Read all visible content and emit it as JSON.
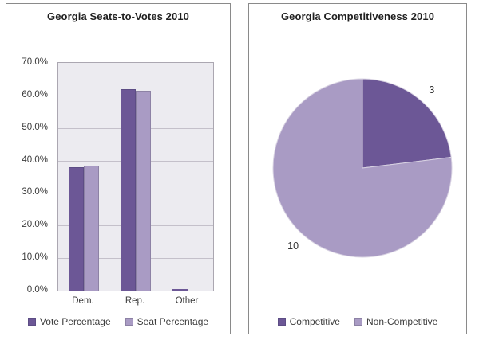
{
  "colors": {
    "accent_dark_purple": "#6C5796",
    "accent_light_purple": "#A99BC4",
    "plot_background": "#ECEBF0",
    "gridline": "#C4C0CA",
    "plot_border": "#ABA7B1",
    "panel_border": "#8A8A8A",
    "title_text": "#1F1F1F",
    "axis_text": "#3C3C3C",
    "slice_separator": "#D8D2E2",
    "light_bar_border": "#8D82A5",
    "dark_bar_border": "#5D4D85"
  },
  "chart_data": [
    {
      "type": "bar",
      "title": "Georgia Seats-to-Votes 2010",
      "categories": [
        "Dem.",
        "Rep.",
        "Other"
      ],
      "series": [
        {
          "name": "Vote Percentage",
          "values": [
            38.0,
            62.0,
            0.4
          ]
        },
        {
          "name": "Seat Percentage",
          "values": [
            38.5,
            61.5,
            0.0
          ]
        }
      ],
      "xlabel": "",
      "ylabel": "",
      "ylim": [
        0,
        70
      ],
      "ytick_step": 10,
      "y_ticks": [
        "70.0%",
        "60.0%",
        "50.0%",
        "40.0%",
        "30.0%",
        "20.0%",
        "10.0%",
        "0.0%"
      ],
      "grid": true,
      "legend_position": "bottom"
    },
    {
      "type": "pie",
      "title": "Georgia Competitiveness 2010",
      "labels": [
        "Competitive",
        "Non-Competitive"
      ],
      "values": [
        3,
        10
      ],
      "data_labels": [
        "3",
        "10"
      ],
      "start_angle_deg": 0,
      "direction": "clockwise",
      "legend_position": "bottom"
    }
  ]
}
